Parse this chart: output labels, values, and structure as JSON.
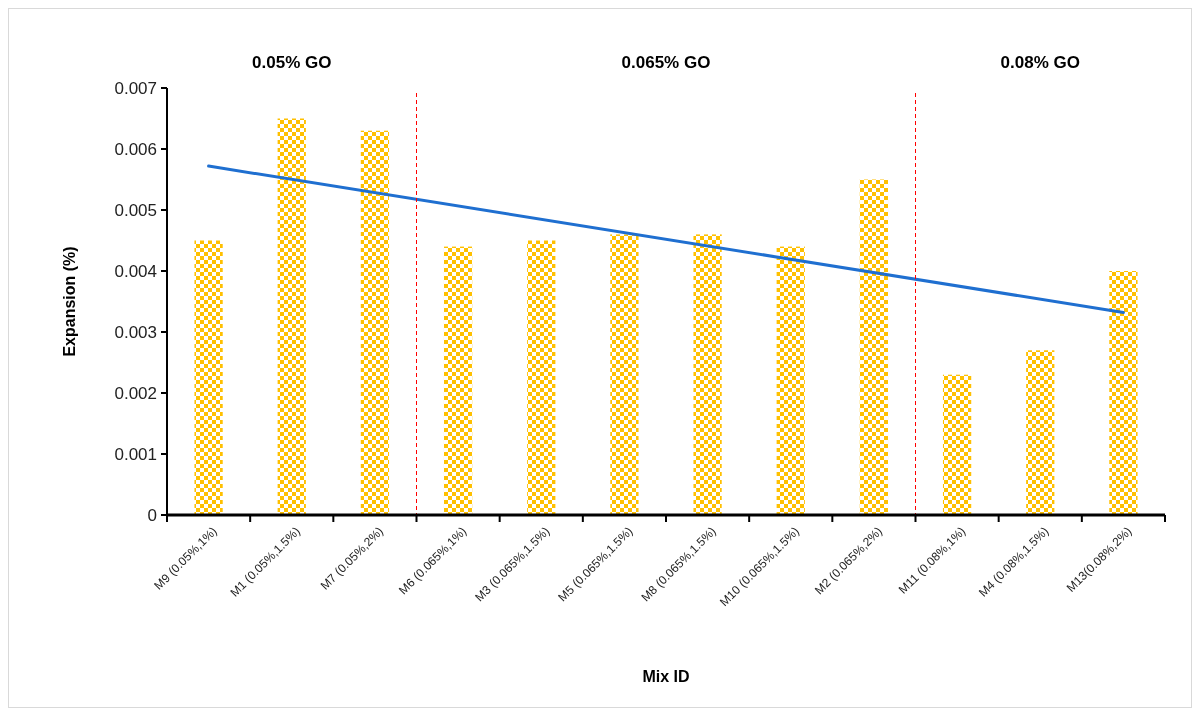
{
  "chart_data": {
    "type": "bar",
    "xlabel": "Mix ID",
    "ylabel": "Expansion (%)",
    "categories": [
      "M9 (0.05%,1%)",
      "M1 (0.05%,1.5%)",
      "M7 (0.05%,2%)",
      "M6 (0.065%,1%)",
      "M3 (0.065%,1.5%)",
      "M5 (0.065%,1.5%)",
      "M8 (0.065%,1.5%)",
      "M10 (0.065%,1.5%)",
      "M2 (0.065%,2%)",
      "M11 (0.08%,1%)",
      "M4 (0.08%,1.5%)",
      "M13(0.08%,2%)"
    ],
    "series": [
      {
        "color": "#ffc000",
        "values": [
          0.0045,
          0.0065,
          0.0063,
          0.0044,
          0.0045,
          0.0046,
          0.0046,
          0.0044,
          0.0055,
          0.0023,
          0.0027,
          0.004
        ]
      },
      {
        "type": "line",
        "color": "#1f6fd0",
        "x": [
          "M9 (0.05%,1%)",
          "M13(0.08%,2%)"
        ],
        "values": [
          0.00572,
          0.00332
        ]
      }
    ],
    "ylim": [
      0,
      0.007
    ],
    "yticks": [
      0,
      0.001,
      0.002,
      0.003,
      0.004,
      0.005,
      0.006,
      0.007
    ],
    "grid": false,
    "annotations": [
      "0.05% GO",
      "0.065% GO",
      "0.08% GO"
    ]
  }
}
